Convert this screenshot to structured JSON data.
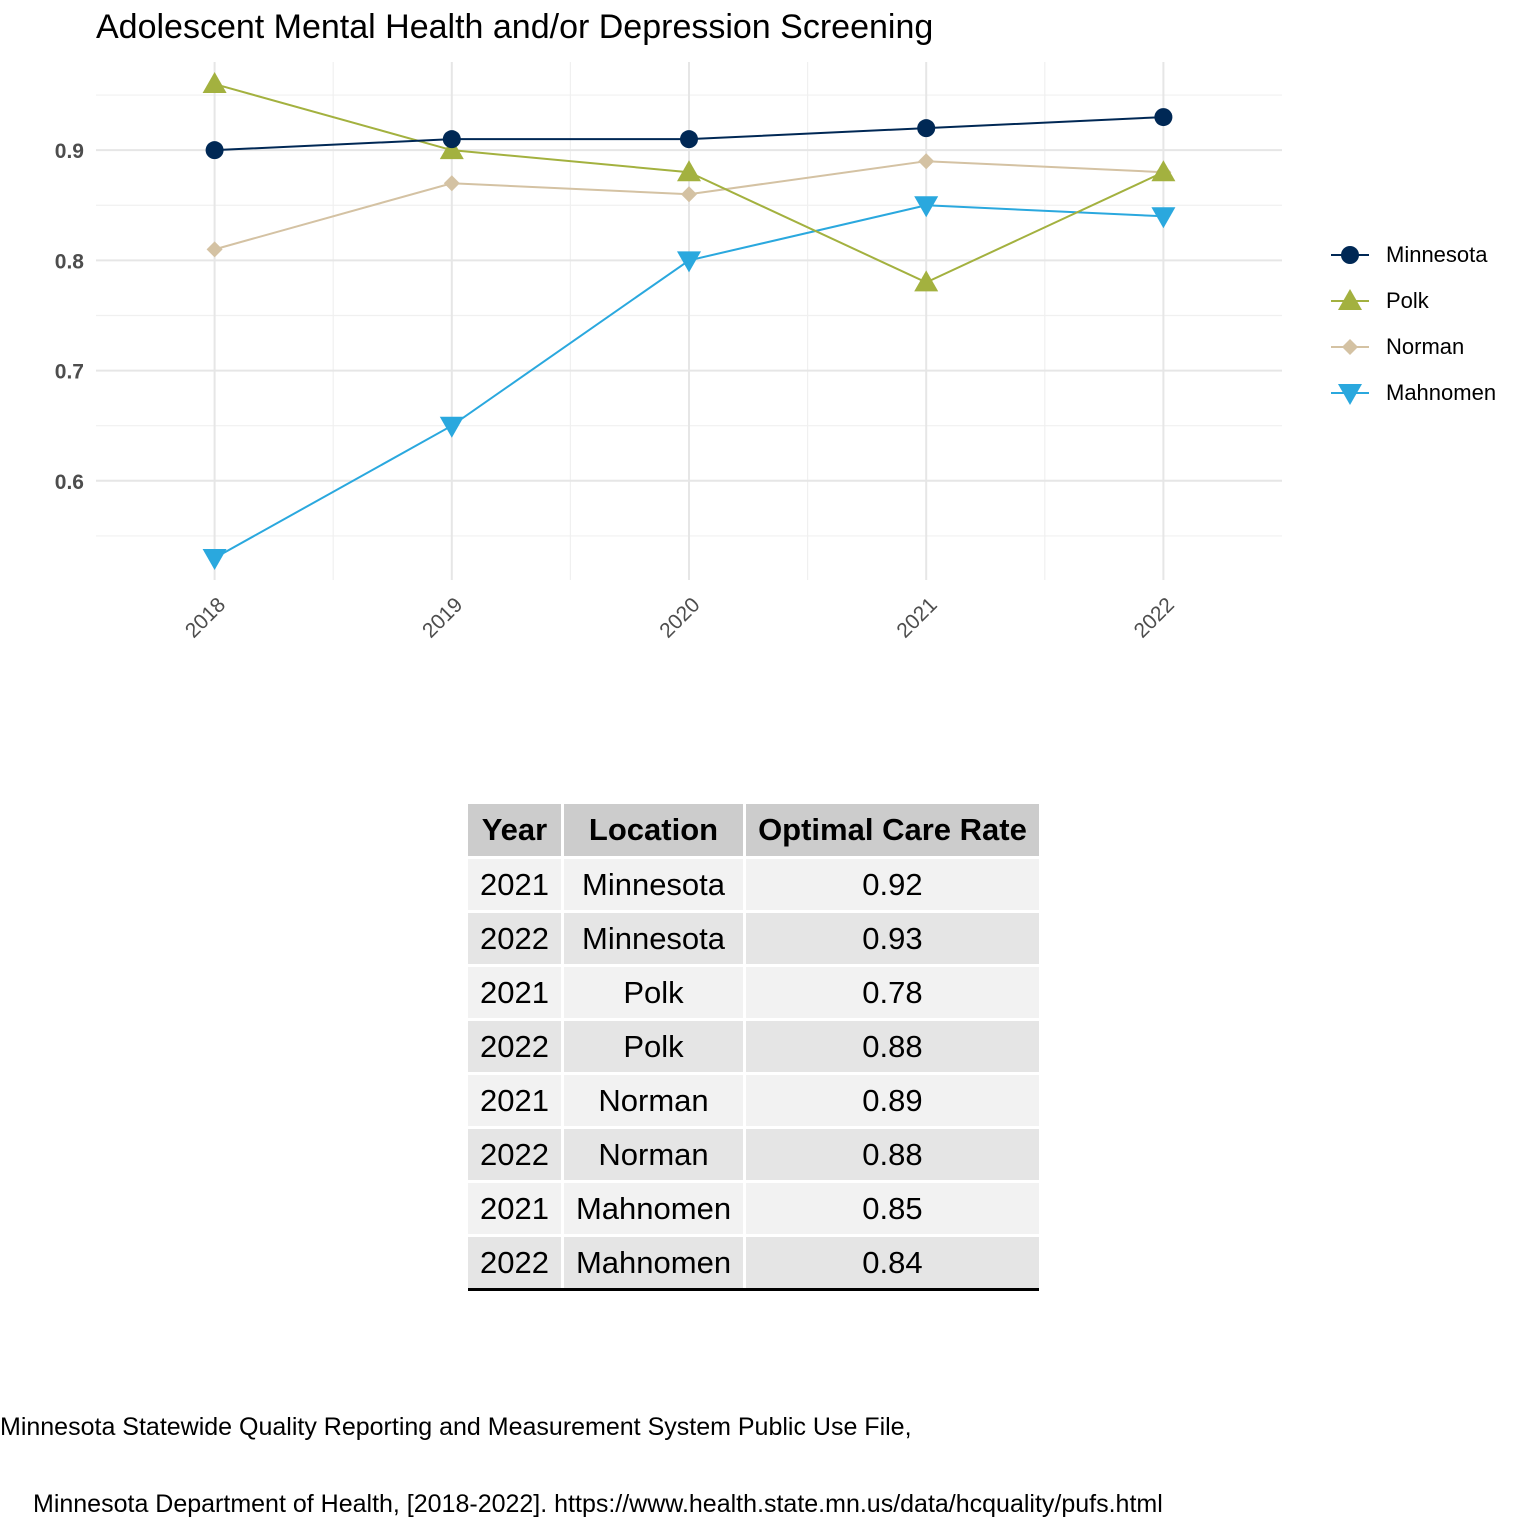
{
  "chart_data": {
    "type": "line",
    "title": "Adolescent Mental Health and/or Depression Screening",
    "xlabel": "",
    "ylabel": "",
    "categories": [
      "2018",
      "2019",
      "2020",
      "2021",
      "2022"
    ],
    "ylim": [
      0.51,
      0.98
    ],
    "yticks": [
      "0.6",
      "0.7",
      "0.8",
      "0.9"
    ],
    "grid": true,
    "legend_position": "right",
    "series": [
      {
        "name": "Minnesota",
        "values": [
          0.9,
          0.91,
          0.91,
          0.92,
          0.93
        ],
        "color": "#002855",
        "marker": "circle"
      },
      {
        "name": "Polk",
        "values": [
          0.96,
          0.9,
          0.88,
          0.78,
          0.88
        ],
        "color": "#a3b13f",
        "marker": "triangle-up"
      },
      {
        "name": "Norman",
        "values": [
          0.81,
          0.87,
          0.86,
          0.89,
          0.88
        ],
        "color": "#d4c2a3",
        "marker": "diamond"
      },
      {
        "name": "Mahnomen",
        "values": [
          0.53,
          0.65,
          0.8,
          0.85,
          0.84
        ],
        "color": "#2aa8de",
        "marker": "triangle-down"
      }
    ]
  },
  "table": {
    "headers": [
      "Year",
      "Location",
      "Optimal Care Rate"
    ],
    "rows": [
      [
        "2021",
        "Minnesota",
        "0.92"
      ],
      [
        "2022",
        "Minnesota",
        "0.93"
      ],
      [
        "2021",
        "Polk",
        "0.78"
      ],
      [
        "2022",
        "Polk",
        "0.88"
      ],
      [
        "2021",
        "Norman",
        "0.89"
      ],
      [
        "2022",
        "Norman",
        "0.88"
      ],
      [
        "2021",
        "Mahnomen",
        "0.85"
      ],
      [
        "2022",
        "Mahnomen",
        "0.84"
      ]
    ]
  },
  "source": {
    "line1": "Minnesota Statewide Quality Reporting and Measurement System Public Use File,",
    "line2": "Minnesota Department of Health, [2018-2022]. https://www.health.state.mn.us/data/hcquality/pufs.html"
  }
}
